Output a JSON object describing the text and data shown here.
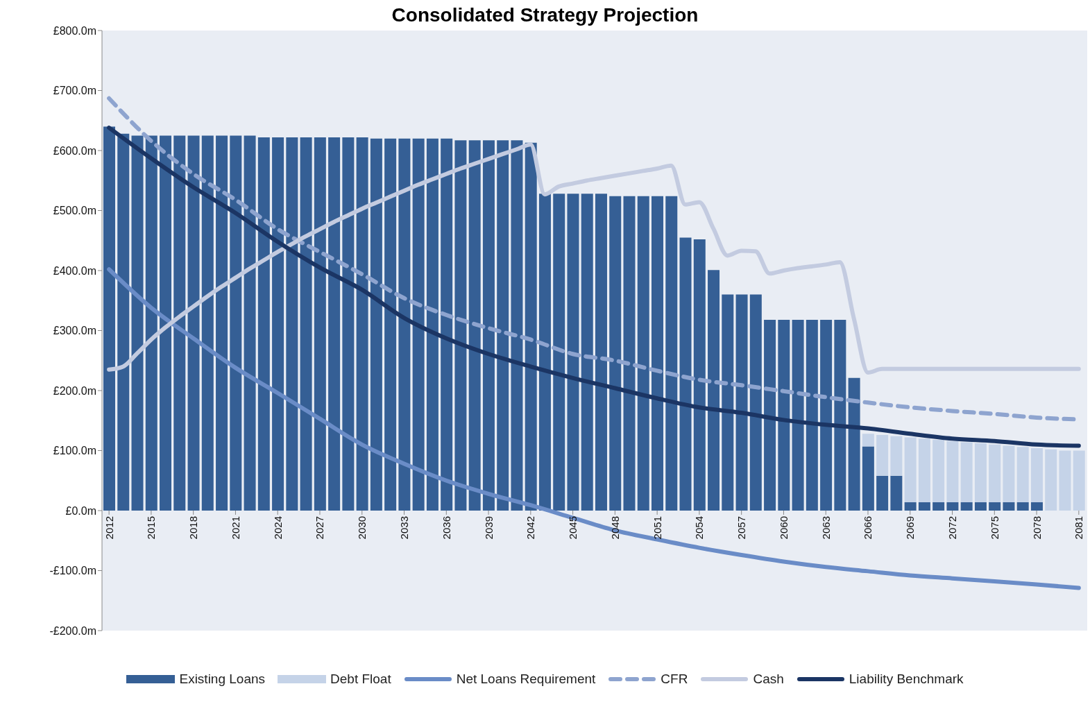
{
  "chart_data": {
    "type": "bar",
    "title": "Consolidated Strategy Projection",
    "stacked": true,
    "legend": "bottom",
    "grid": false,
    "marker": "none",
    "x": [
      2012,
      2013,
      2014,
      2015,
      2016,
      2017,
      2018,
      2019,
      2020,
      2021,
      2022,
      2023,
      2024,
      2025,
      2026,
      2027,
      2028,
      2029,
      2030,
      2031,
      2032,
      2033,
      2034,
      2035,
      2036,
      2037,
      2038,
      2039,
      2040,
      2041,
      2042,
      2043,
      2044,
      2045,
      2046,
      2047,
      2048,
      2049,
      2050,
      2051,
      2052,
      2053,
      2054,
      2055,
      2056,
      2057,
      2058,
      2059,
      2060,
      2061,
      2062,
      2063,
      2064,
      2065,
      2066,
      2067,
      2068,
      2069,
      2070,
      2071,
      2072,
      2073,
      2074,
      2075,
      2076,
      2077,
      2078,
      2079,
      2080,
      2081
    ],
    "xlim": [
      2011.5,
      2081.6
    ],
    "xticks": [
      2012,
      2015,
      2018,
      2021,
      2024,
      2027,
      2030,
      2033,
      2036,
      2039,
      2042,
      2045,
      2048,
      2051,
      2054,
      2057,
      2060,
      2063,
      2066,
      2069,
      2072,
      2075,
      2078,
      2081
    ],
    "ylim": [
      -200,
      800
    ],
    "yticks": [
      {
        "value": -200,
        "label": "-£200.0m"
      },
      {
        "value": -100,
        "label": "-£100.0m"
      },
      {
        "value": 0,
        "label": "£0.0m"
      },
      {
        "value": 100,
        "label": "£100.0m"
      },
      {
        "value": 200,
        "label": "£200.0m"
      },
      {
        "value": 300,
        "label": "£300.0m"
      },
      {
        "value": 400,
        "label": "£400.0m"
      },
      {
        "value": 500,
        "label": "£500.0m"
      },
      {
        "value": 600,
        "label": "£600.0m"
      },
      {
        "value": 700,
        "label": "£700.0m"
      },
      {
        "value": 800,
        "label": "£800.0m"
      }
    ],
    "series": [
      {
        "name": "Existing Loans",
        "color": "#355f95",
        "values": [
          640,
          628,
          625,
          625,
          625,
          625,
          625,
          625,
          625,
          625,
          625,
          622,
          622,
          622,
          622,
          622,
          622,
          622,
          622,
          620,
          620,
          620,
          620,
          620,
          620,
          617,
          617,
          617,
          617,
          617,
          613,
          528,
          528,
          528,
          528,
          528,
          524,
          524,
          524,
          524,
          524,
          455,
          452,
          401,
          360,
          360,
          360,
          318,
          318,
          318,
          318,
          318,
          318,
          221,
          107,
          58,
          58,
          14,
          14,
          14,
          14,
          14,
          14,
          14,
          14,
          14,
          14,
          0,
          0,
          0
        ]
      },
      {
        "name": "Debt Float",
        "color": "#c5d3e8",
        "values": [
          null,
          null,
          null,
          null,
          null,
          null,
          null,
          null,
          null,
          null,
          null,
          null,
          null,
          null,
          null,
          null,
          null,
          null,
          null,
          null,
          null,
          null,
          null,
          null,
          null,
          null,
          null,
          null,
          null,
          null,
          null,
          null,
          null,
          null,
          null,
          null,
          null,
          null,
          null,
          null,
          null,
          null,
          null,
          null,
          null,
          null,
          null,
          null,
          null,
          null,
          null,
          null,
          null,
          null,
          21,
          68,
          66,
          108,
          106,
          104,
          102,
          100,
          98,
          96,
          94,
          92,
          90,
          102,
          100,
          100
        ]
      },
      {
        "name": "Net Loans Requirement",
        "type": "line",
        "line_style": "solid",
        "color": "#6a8cc7",
        "x": [
          2012,
          2015,
          2018,
          2021,
          2024,
          2027,
          2030,
          2033,
          2036,
          2039,
          2042,
          2045,
          2048,
          2051,
          2054,
          2057,
          2060,
          2063,
          2066,
          2069,
          2072,
          2075,
          2078,
          2081
        ],
        "values": [
          402,
          338,
          287,
          238,
          196,
          153,
          110,
          78,
          50,
          28,
          9,
          -12,
          -33,
          -48,
          -62,
          -74,
          -85,
          -94,
          -101,
          -108,
          -113,
          -118,
          -123,
          -129
        ]
      },
      {
        "name": "CFR",
        "type": "line",
        "line_style": "dashed",
        "color": "#8ea4cf",
        "x": [
          2012,
          2015,
          2018,
          2021,
          2024,
          2027,
          2030,
          2033,
          2036,
          2039,
          2042,
          2045,
          2048,
          2051,
          2054,
          2057,
          2060,
          2063,
          2066,
          2069,
          2072,
          2075,
          2078,
          2081
        ],
        "values": [
          687,
          616,
          561,
          518,
          469,
          431,
          394,
          354,
          326,
          304,
          285,
          261,
          250,
          233,
          218,
          209,
          199,
          189,
          180,
          172,
          166,
          161,
          155,
          152
        ]
      },
      {
        "name": "Cash",
        "type": "line",
        "line_style": "solid",
        "color": "#c3cbe0",
        "values": [
          235,
          240,
          262,
          285,
          305,
          323,
          340,
          357,
          373,
          388,
          403,
          417,
          431,
          444,
          457,
          469,
          481,
          492,
          503,
          513,
          523,
          533,
          543,
          552,
          561,
          570,
          578,
          586,
          594,
          602,
          610,
          527,
          540,
          545,
          550,
          554,
          558,
          562,
          566,
          570,
          575,
          510,
          514,
          470,
          425,
          433,
          432,
          395,
          400,
          404,
          407,
          410,
          414,
          320,
          230,
          236,
          236,
          236,
          236,
          236,
          236,
          236,
          236,
          236,
          236,
          236,
          236,
          236,
          236,
          236
        ]
      },
      {
        "name": "Liability Benchmark",
        "type": "line",
        "line_style": "solid",
        "color": "#1b3564",
        "x": [
          2012,
          2015,
          2018,
          2021,
          2024,
          2027,
          2030,
          2033,
          2036,
          2039,
          2042,
          2045,
          2048,
          2051,
          2054,
          2057,
          2060,
          2063,
          2066,
          2069,
          2072,
          2075,
          2078,
          2081
        ],
        "values": [
          638,
          587,
          539,
          496,
          448,
          405,
          368,
          321,
          287,
          261,
          240,
          221,
          204,
          187,
          172,
          163,
          151,
          143,
          137,
          128,
          120,
          116,
          110,
          108
        ]
      }
    ]
  }
}
